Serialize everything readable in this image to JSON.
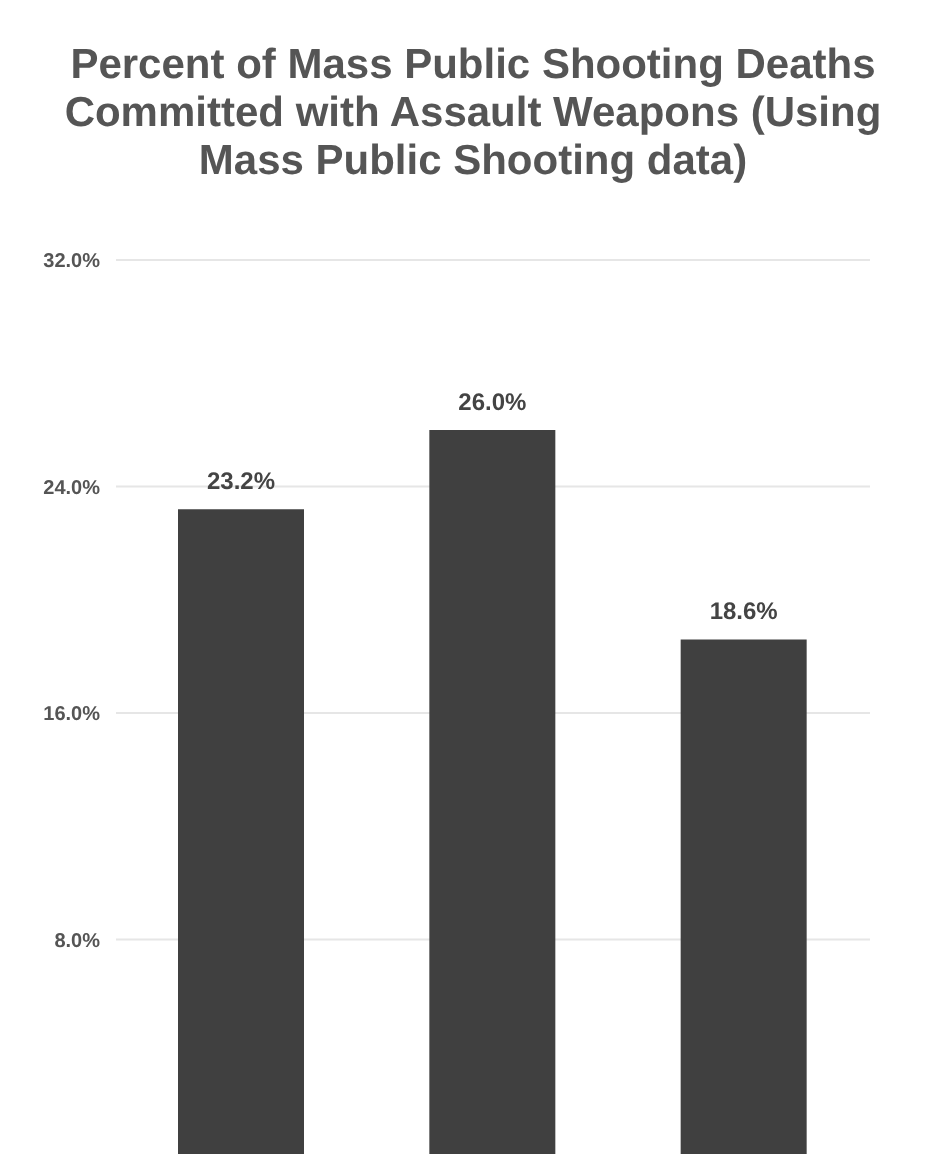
{
  "chart_data": {
    "type": "bar",
    "title": "Percent of Mass Public Shooting Deaths Committed with Assault Weapons (Using Mass Public Shooting data)",
    "categories": [
      null,
      null,
      null
    ],
    "values": [
      23.2,
      26.0,
      18.6
    ],
    "value_labels": [
      "23.2%",
      "26.0%",
      "18.6%"
    ],
    "color": "#404040",
    "ylim": [
      0,
      32
    ],
    "yticks": [
      {
        "value": 8,
        "label": "8.0%"
      },
      {
        "value": 16,
        "label": "16.0%"
      },
      {
        "value": 24,
        "label": "24.0%"
      },
      {
        "value": 32,
        "label": "32.0%"
      }
    ],
    "grid": "y",
    "tick_labels": "y"
  }
}
